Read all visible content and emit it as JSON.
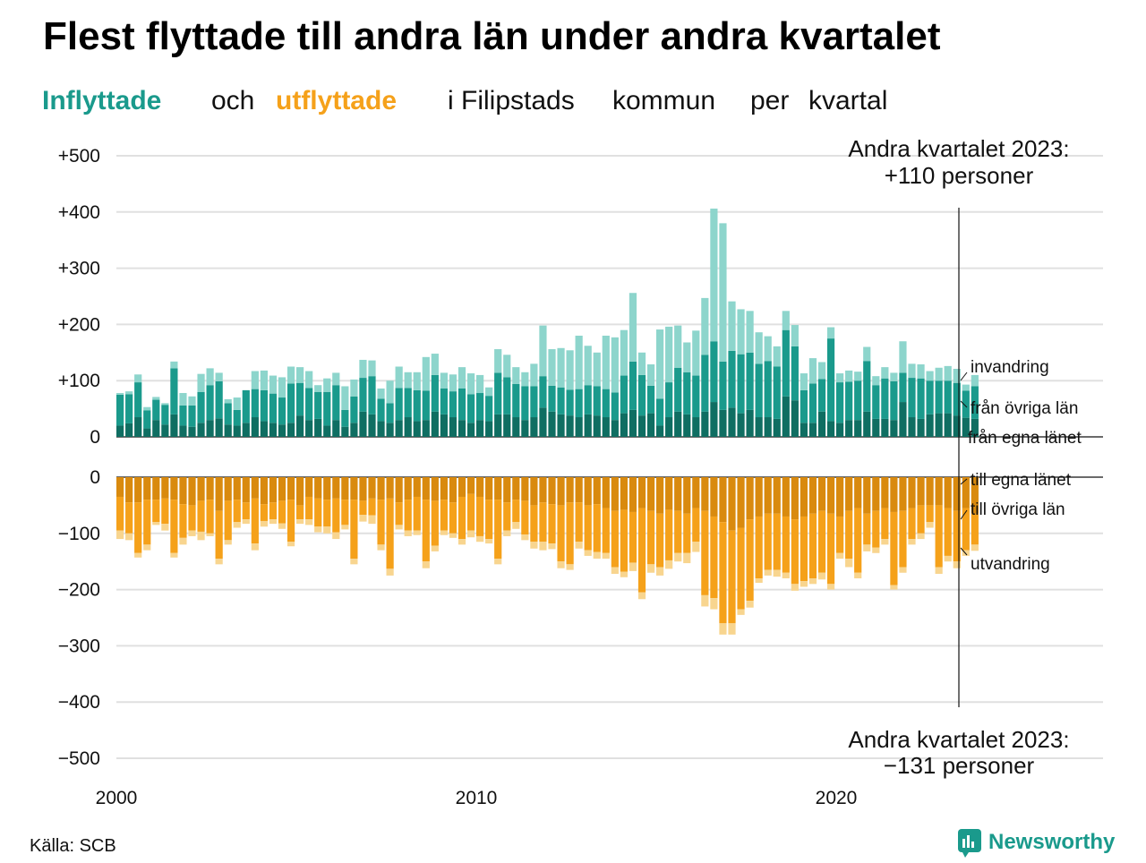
{
  "header": {
    "title": "Flest flyttade till andra län under andra kvartalet",
    "subtitle_parts": [
      {
        "text": "Inflyttade",
        "color": "#1a9a8c",
        "bold": true
      },
      {
        "text": "och",
        "color": "#111111",
        "bold": false
      },
      {
        "text": "utflyttade",
        "color": "#f5a11a",
        "bold": true
      },
      {
        "text": "i Filipstads",
        "color": "#111111",
        "bold": false
      },
      {
        "text": "kommun",
        "color": "#111111",
        "bold": false
      },
      {
        "text": "per",
        "color": "#111111",
        "bold": false
      },
      {
        "text": "kvartal",
        "color": "#111111",
        "bold": false
      }
    ]
  },
  "annotations": {
    "top_line1": "Andra kvartalet 2023:",
    "top_line2": "+110 personer",
    "bottom_line1": "Andra kvartalet 2023:",
    "bottom_line2": "−131 personer"
  },
  "footer": {
    "source": "Källa: SCB",
    "brand": "Newsworthy",
    "brand_color": "#1a9a8c"
  },
  "colors": {
    "in_egna": "#0f6e62",
    "in_ovriga": "#1a9a8c",
    "in_invandring": "#8dd5cc",
    "out_egna": "#d98a0e",
    "out_ovriga": "#f5a11a",
    "out_utvandring": "#f8d58f",
    "grid": "#e0e0e0",
    "axis": "#111111"
  },
  "chart_data": {
    "type": "bar",
    "x_ticks": [
      "2000",
      "2010",
      "2020"
    ],
    "quarters_start": "2000 Q1",
    "quarters_end": "2023 Q2",
    "top": {
      "yticks": [
        "+500",
        "+400",
        "+300",
        "+200",
        "+100",
        "0"
      ],
      "ylim": [
        0,
        500
      ],
      "layer_labels": [
        "invandring",
        "från övriga län",
        "från egna länet"
      ],
      "series": [
        {
          "name": "från egna länet",
          "values": [
            20,
            24,
            35,
            15,
            30,
            22,
            40,
            20,
            18,
            25,
            30,
            33,
            22,
            20,
            25,
            35,
            28,
            25,
            22,
            25,
            38,
            30,
            32,
            20,
            30,
            18,
            25,
            45,
            40,
            28,
            25,
            30,
            35,
            28,
            30,
            45,
            40,
            35,
            30,
            25,
            30,
            28,
            40,
            40,
            35,
            30,
            35,
            52,
            45,
            40,
            38,
            35,
            40,
            38,
            35,
            30,
            42,
            48,
            38,
            42,
            20,
            35,
            45,
            40,
            35,
            45,
            62,
            48,
            52,
            42,
            48,
            35,
            35,
            32,
            72,
            65,
            25,
            25,
            45,
            28,
            25,
            30,
            30,
            45,
            32,
            32,
            30,
            62,
            35,
            32,
            40,
            42,
            42,
            38,
            34,
            32
          ]
        },
        {
          "name": "från övriga län",
          "values": [
            55,
            52,
            62,
            32,
            36,
            35,
            82,
            36,
            38,
            55,
            62,
            66,
            38,
            28,
            58,
            50,
            55,
            52,
            48,
            70,
            58,
            57,
            48,
            60,
            62,
            30,
            47,
            60,
            68,
            40,
            35,
            57,
            52,
            55,
            52,
            65,
            46,
            46,
            56,
            51,
            48,
            45,
            74,
            66,
            59,
            60,
            55,
            56,
            46,
            48,
            46,
            50,
            52,
            52,
            50,
            49,
            67,
            86,
            72,
            49,
            48,
            62,
            78,
            75,
            74,
            101,
            108,
            86,
            101,
            105,
            102,
            95,
            100,
            93,
            118,
            96,
            58,
            70,
            58,
            147,
            72,
            68,
            70,
            90,
            60,
            72,
            69,
            52,
            70,
            72,
            60,
            58,
            58,
            58,
            48,
            58
          ]
        },
        {
          "name": "invandring",
          "values": [
            3,
            5,
            14,
            6,
            5,
            3,
            12,
            22,
            16,
            32,
            30,
            15,
            7,
            22,
            0,
            32,
            35,
            32,
            36,
            30,
            28,
            30,
            12,
            24,
            22,
            42,
            30,
            32,
            28,
            18,
            40,
            38,
            28,
            32,
            60,
            38,
            28,
            30,
            38,
            37,
            32,
            15,
            42,
            40,
            30,
            25,
            40,
            90,
            65,
            70,
            70,
            95,
            70,
            60,
            95,
            98,
            81,
            122,
            40,
            38,
            123,
            99,
            75,
            53,
            80,
            101,
            236,
            246,
            88,
            80,
            74,
            56,
            44,
            36,
            34,
            38,
            30,
            45,
            30,
            20,
            16,
            20,
            16,
            25,
            16,
            20,
            15,
            56,
            25,
            25,
            17,
            23,
            26,
            25,
            11,
            20
          ]
        }
      ]
    },
    "bottom": {
      "yticks": [
        "0",
        "−100",
        "−200",
        "−300",
        "−400",
        "−500"
      ],
      "ylim": [
        -500,
        0
      ],
      "layer_labels": [
        "till egna länet",
        "till övriga län",
        "utvandring"
      ],
      "series": [
        {
          "name": "till egna länet",
          "values": [
            -35,
            -45,
            -45,
            -40,
            -40,
            -38,
            -40,
            -48,
            -50,
            -42,
            -40,
            -60,
            -42,
            -40,
            -45,
            -38,
            -48,
            -45,
            -42,
            -40,
            -50,
            -35,
            -38,
            -40,
            -38,
            -40,
            -40,
            -42,
            -38,
            -40,
            -38,
            -45,
            -40,
            -35,
            -40,
            -42,
            -40,
            -45,
            -35,
            -30,
            -35,
            -40,
            -40,
            -45,
            -40,
            -42,
            -50,
            -45,
            -48,
            -50,
            -45,
            -45,
            -50,
            -48,
            -55,
            -60,
            -58,
            -62,
            -55,
            -60,
            -65,
            -58,
            -60,
            -65,
            -55,
            -60,
            -70,
            -80,
            -95,
            -90,
            -75,
            -70,
            -65,
            -65,
            -70,
            -75,
            -70,
            -65,
            -60,
            -65,
            -70,
            -60,
            -55,
            -65,
            -60,
            -55,
            -62,
            -60,
            -55,
            -50,
            -50,
            -50,
            -55,
            -60,
            -55,
            -65
          ]
        },
        {
          "name": "till övriga län",
          "values": [
            -60,
            -55,
            -90,
            -80,
            -40,
            -45,
            -95,
            -60,
            -45,
            -55,
            -60,
            -85,
            -70,
            -40,
            -30,
            -80,
            -30,
            -30,
            -40,
            -75,
            -25,
            -40,
            -50,
            -48,
            -60,
            -45,
            -105,
            -25,
            -30,
            -80,
            -125,
            -40,
            -55,
            -60,
            -110,
            -80,
            -55,
            -55,
            -75,
            -65,
            -70,
            -70,
            -105,
            -50,
            -40,
            -60,
            -65,
            -70,
            -70,
            -100,
            -110,
            -70,
            -80,
            -85,
            -80,
            -100,
            -110,
            -90,
            -150,
            -95,
            -95,
            -90,
            -75,
            -70,
            -60,
            -150,
            -145,
            -180,
            -165,
            -145,
            -145,
            -110,
            -100,
            -100,
            -100,
            -115,
            -115,
            -115,
            -110,
            -125,
            -65,
            -85,
            -115,
            -55,
            -65,
            -55,
            -130,
            -100,
            -55,
            -50,
            -30,
            -110,
            -85,
            -90,
            -75,
            -55
          ]
        },
        {
          "name": "utvandring",
          "values": [
            -15,
            -12,
            -8,
            -10,
            -5,
            -12,
            -8,
            -12,
            -10,
            -15,
            -5,
            -10,
            -8,
            -10,
            -8,
            -12,
            -10,
            -8,
            -10,
            -8,
            -8,
            -10,
            -10,
            -12,
            -12,
            -8,
            -10,
            -12,
            -15,
            -10,
            -12,
            -8,
            -10,
            -8,
            -12,
            -10,
            -8,
            -8,
            -10,
            -12,
            -10,
            -8,
            -10,
            -10,
            -12,
            -10,
            -12,
            -15,
            -10,
            -12,
            -10,
            -12,
            -10,
            -12,
            -10,
            -12,
            -10,
            -15,
            -12,
            -15,
            -15,
            -15,
            -15,
            -18,
            -18,
            -20,
            -20,
            -20,
            -20,
            -10,
            -12,
            -8,
            -10,
            -12,
            -10,
            -12,
            -10,
            -10,
            -12,
            -10,
            -10,
            -15,
            -10,
            -12,
            -10,
            -10,
            -8,
            -10,
            -10,
            -10,
            -10,
            -12,
            -10,
            -12,
            -10,
            -11
          ]
        }
      ]
    },
    "xlabel": "",
    "ylabel": "",
    "grid": true
  }
}
